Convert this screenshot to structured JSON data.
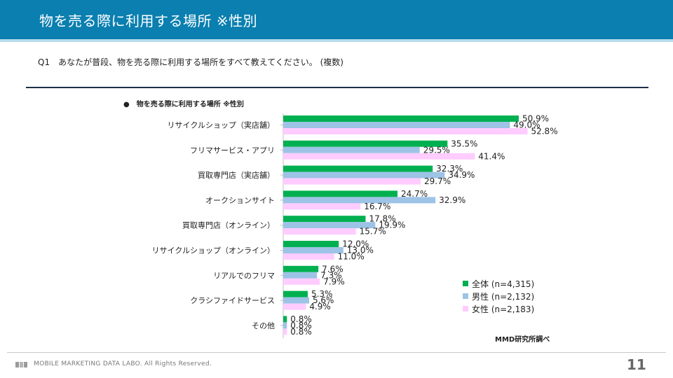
{
  "header": {
    "title": "物を売る際に利用する場所 ※性別"
  },
  "question": "Q1　あなたが普段、物を売る際に利用する場所をすべて教えてください。 (複数)",
  "chart_title": "●　物を売る際に利用する場所 ※性別",
  "colors": {
    "all": "#00b050",
    "male": "#9dc3e6",
    "female": "#ffccff",
    "header": "#0a7fb0"
  },
  "chart_data": {
    "type": "bar",
    "orientation": "horizontal",
    "title": "物を売る際に利用する場所 ※性別",
    "categories": [
      "リサイクルショップ（実店舗）",
      "フリマサービス・アプリ",
      "買取専門店（実店舗）",
      "オークションサイト",
      "買取専門店（オンライン）",
      "リサイクルショップ（オンライン）",
      "リアルでのフリマ",
      "クラシファイドサービス",
      "その他"
    ],
    "series": [
      {
        "name": "全体 (n=4,315)",
        "values": [
          50.9,
          35.5,
          32.3,
          24.7,
          17.8,
          12.0,
          7.6,
          5.3,
          0.8
        ]
      },
      {
        "name": "男性 (n=2,132)",
        "values": [
          49.0,
          29.5,
          34.9,
          32.9,
          19.9,
          13.0,
          7.3,
          5.6,
          0.8
        ]
      },
      {
        "name": "女性 (n=2,183)",
        "values": [
          52.8,
          41.4,
          29.7,
          16.7,
          15.7,
          11.0,
          7.9,
          4.9,
          0.8
        ]
      }
    ],
    "xlim": [
      0,
      100
    ],
    "value_suffix": "%",
    "legend_position": "bottom-right"
  },
  "source": "MMD研究所調べ",
  "footer": {
    "company": "MOBILE MARKETING DATA LABO.  All Rights Reserved."
  },
  "page_number": "11"
}
